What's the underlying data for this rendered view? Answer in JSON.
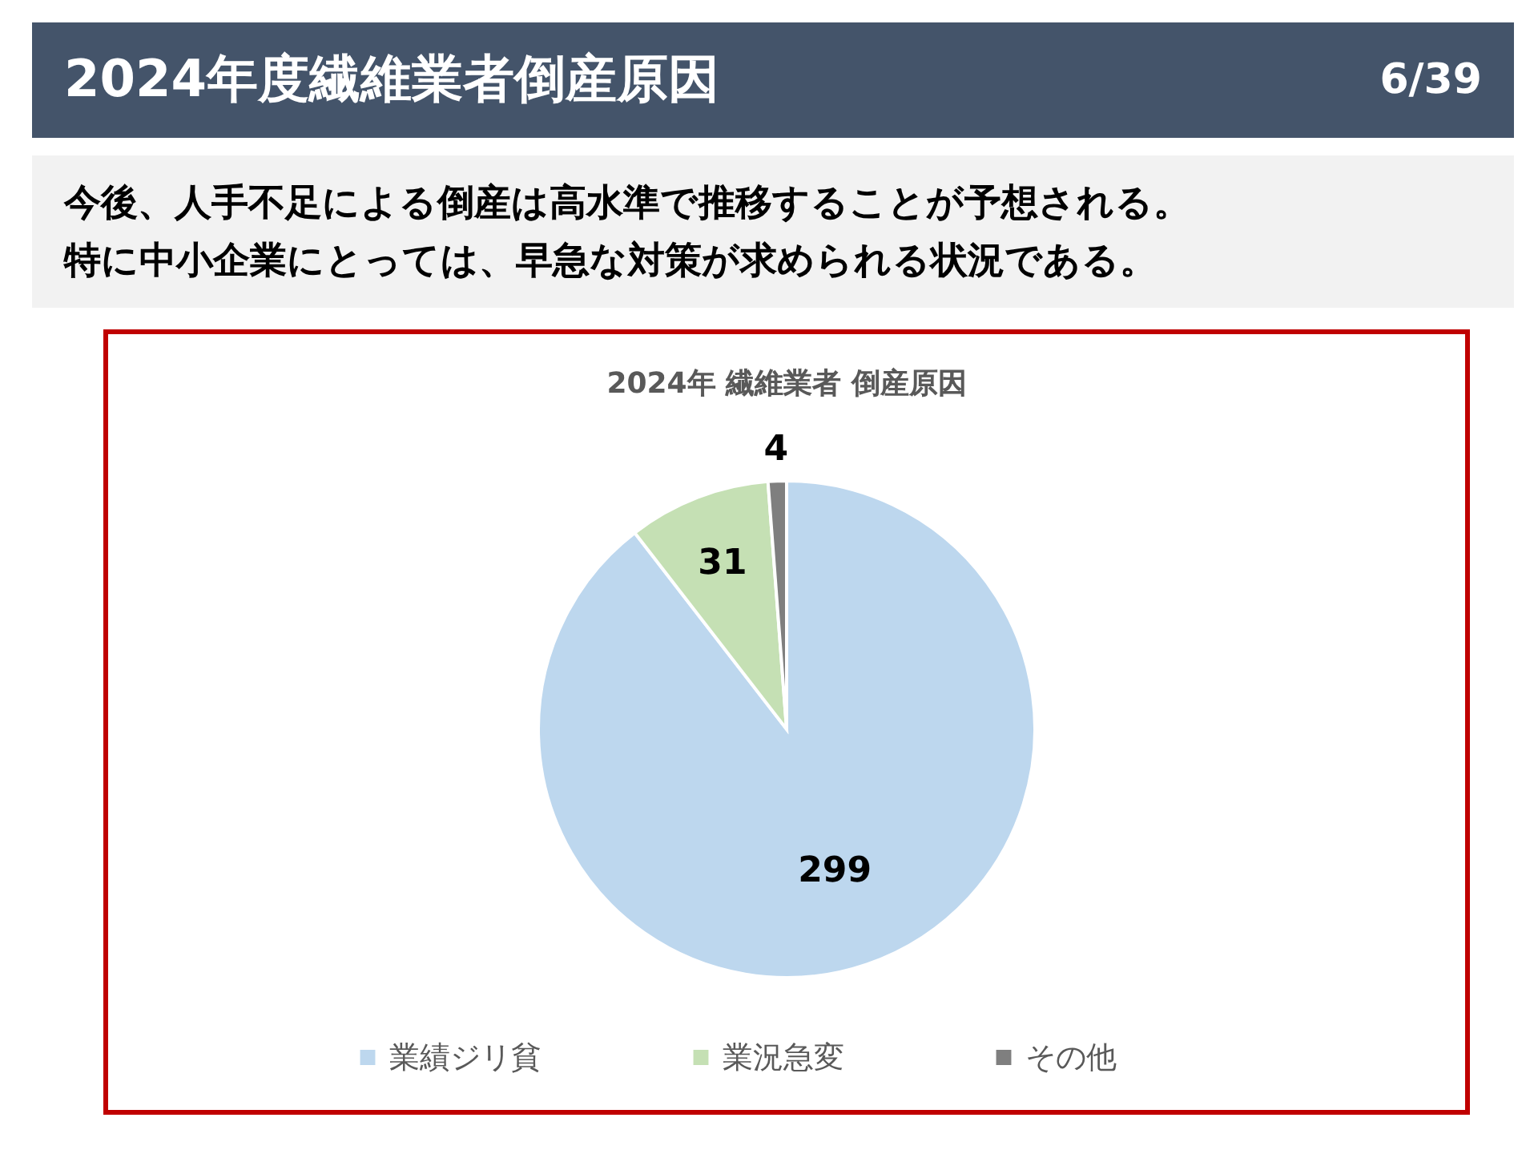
{
  "chart_data": {
    "type": "pie",
    "title": "2024年 繊維業者 倒産原因",
    "annotations": [
      "2024年度繊維業者倒産原因",
      "6/39",
      "今後、人手不足による倒産は高水準で推移することが予想される。",
      "特に中小企業にとっては、早急な対策が求められる状況である。"
    ],
    "categories": [
      "業績ジリ貧",
      "業況急変",
      "その他"
    ],
    "values": [
      299,
      31,
      4
    ],
    "colors": [
      "#bdd7ee",
      "#c5e0b4",
      "#7f7f7f"
    ],
    "data_labels": true,
    "legend": "bottom"
  }
}
